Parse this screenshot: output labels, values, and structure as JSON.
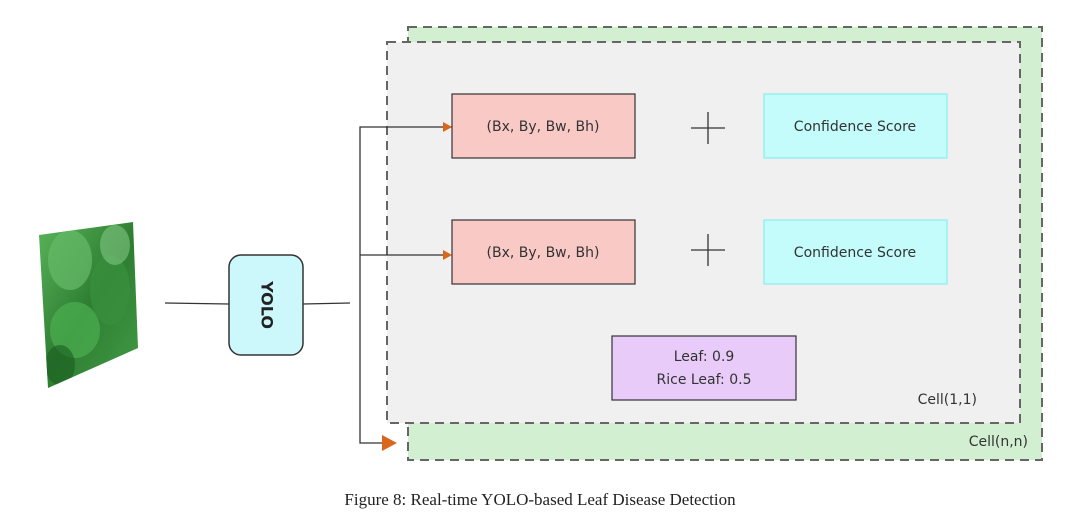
{
  "diagram": {
    "input_image": "leaf-photo",
    "model_label": "YOLO",
    "bbox_label_1": "(Bx, By, Bw, Bh)",
    "bbox_label_2": "(Bx, By, Bw, Bh)",
    "confidence_label_1": "Confidence Score",
    "confidence_label_2": "Confidence Score",
    "class_line_1": "Leaf: 0.9",
    "class_line_2": "Rice Leaf: 0.5",
    "cell_first": "Cell(1,1)",
    "cell_last": "Cell(n,n)",
    "colors": {
      "bbox_fill": "#f9c9c6",
      "confidence_fill": "#c4fbfb",
      "class_fill": "#e8cbf9",
      "outer_cell_fill": "#d2efd2",
      "inner_cell_fill": "#f0f0f0",
      "yolo_fill": "#cdf8fb",
      "arrow": "#d9661a"
    }
  },
  "caption": "Figure 8: Real-time YOLO-based Leaf Disease Detection"
}
